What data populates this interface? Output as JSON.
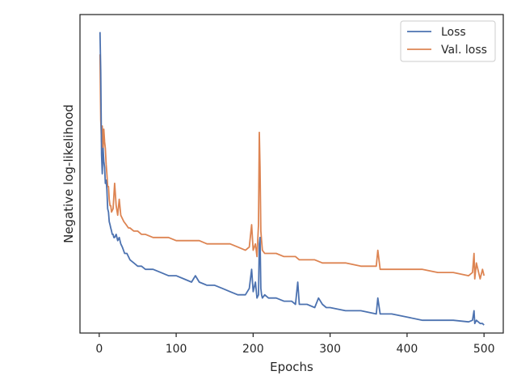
{
  "chart_data": {
    "type": "line",
    "title": "",
    "xlabel": "Epochs",
    "ylabel": "Negative log-likelihood",
    "xlim": [
      -25,
      525
    ],
    "ylim": [
      0,
      1
    ],
    "y_ticks_shown": false,
    "x_ticks": [
      {
        "value": 0,
        "label": "0"
      },
      {
        "value": 100,
        "label": "100"
      },
      {
        "value": 200,
        "label": "200"
      },
      {
        "value": 300,
        "label": "300"
      },
      {
        "value": 400,
        "label": "400"
      },
      {
        "value": 500,
        "label": "500"
      }
    ],
    "grid": false,
    "legend": {
      "position": "top-right"
    },
    "series": [
      {
        "name": "Loss",
        "color": "#4c72b0",
        "x": [
          1,
          2,
          3,
          4,
          5,
          6,
          7,
          8,
          9,
          10,
          11,
          12,
          13,
          14,
          15,
          16,
          17,
          18,
          19,
          20,
          22,
          24,
          26,
          28,
          30,
          33,
          36,
          40,
          45,
          50,
          55,
          60,
          70,
          80,
          90,
          100,
          110,
          120,
          125,
          130,
          140,
          150,
          160,
          170,
          180,
          190,
          195,
          198,
          200,
          203,
          205,
          207,
          208,
          209,
          210,
          211,
          212,
          215,
          220,
          230,
          240,
          250,
          255,
          258,
          260,
          270,
          280,
          285,
          290,
          295,
          300,
          320,
          340,
          360,
          362,
          365,
          380,
          400,
          420,
          440,
          460,
          480,
          485,
          487,
          488,
          490,
          495,
          498,
          500
        ],
        "y": [
          0.945,
          0.82,
          0.56,
          0.5,
          0.58,
          0.54,
          0.52,
          0.47,
          0.48,
          0.45,
          0.39,
          0.38,
          0.35,
          0.34,
          0.33,
          0.32,
          0.31,
          0.31,
          0.3,
          0.3,
          0.31,
          0.29,
          0.3,
          0.28,
          0.27,
          0.25,
          0.25,
          0.23,
          0.22,
          0.21,
          0.21,
          0.2,
          0.2,
          0.19,
          0.18,
          0.18,
          0.17,
          0.16,
          0.18,
          0.16,
          0.15,
          0.15,
          0.14,
          0.13,
          0.12,
          0.12,
          0.14,
          0.2,
          0.13,
          0.16,
          0.11,
          0.12,
          0.28,
          0.3,
          0.14,
          0.12,
          0.11,
          0.12,
          0.11,
          0.11,
          0.1,
          0.1,
          0.09,
          0.16,
          0.09,
          0.09,
          0.08,
          0.11,
          0.09,
          0.08,
          0.08,
          0.07,
          0.07,
          0.06,
          0.11,
          0.06,
          0.06,
          0.05,
          0.04,
          0.04,
          0.04,
          0.035,
          0.04,
          0.07,
          0.03,
          0.04,
          0.03,
          0.03,
          0.025
        ]
      },
      {
        "name": "Val. loss",
        "color": "#dd8452",
        "x": [
          1,
          2,
          3,
          4,
          5,
          6,
          7,
          8,
          9,
          10,
          11,
          12,
          13,
          14,
          15,
          16,
          18,
          20,
          22,
          24,
          26,
          28,
          30,
          32,
          35,
          38,
          40,
          45,
          50,
          55,
          60,
          70,
          80,
          90,
          100,
          110,
          120,
          125,
          130,
          140,
          150,
          160,
          170,
          180,
          190,
          195,
          198,
          200,
          203,
          205,
          207,
          208,
          209,
          210,
          211,
          212,
          215,
          220,
          230,
          240,
          250,
          255,
          260,
          270,
          280,
          290,
          300,
          320,
          340,
          360,
          362,
          365,
          380,
          400,
          420,
          440,
          460,
          480,
          485,
          487,
          488,
          490,
          495,
          498,
          500
        ],
        "y": [
          0.875,
          0.67,
          0.6,
          0.65,
          0.57,
          0.64,
          0.6,
          0.58,
          0.53,
          0.5,
          0.46,
          0.46,
          0.42,
          0.4,
          0.4,
          0.38,
          0.39,
          0.47,
          0.4,
          0.37,
          0.42,
          0.37,
          0.36,
          0.35,
          0.34,
          0.33,
          0.33,
          0.32,
          0.32,
          0.31,
          0.31,
          0.3,
          0.3,
          0.3,
          0.29,
          0.29,
          0.29,
          0.29,
          0.29,
          0.28,
          0.28,
          0.28,
          0.28,
          0.27,
          0.26,
          0.27,
          0.34,
          0.26,
          0.28,
          0.24,
          0.34,
          0.63,
          0.52,
          0.32,
          0.29,
          0.26,
          0.25,
          0.25,
          0.25,
          0.24,
          0.24,
          0.24,
          0.23,
          0.23,
          0.23,
          0.22,
          0.22,
          0.22,
          0.21,
          0.21,
          0.26,
          0.2,
          0.2,
          0.2,
          0.2,
          0.19,
          0.19,
          0.18,
          0.19,
          0.25,
          0.17,
          0.22,
          0.17,
          0.2,
          0.18
        ]
      }
    ]
  }
}
